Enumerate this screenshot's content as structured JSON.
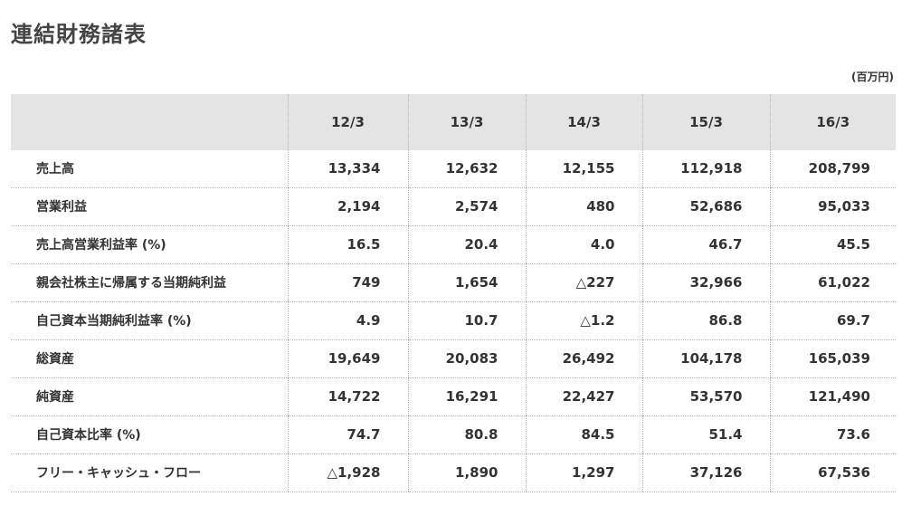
{
  "page": {
    "title": "連結財務諸表",
    "unit": "(百万円)"
  },
  "table": {
    "columns": [
      "",
      "12/3",
      "13/3",
      "14/3",
      "15/3",
      "16/3"
    ],
    "rows": [
      {
        "label": "売上高",
        "values": [
          "13,334",
          "12,632",
          "12,155",
          "112,918",
          "208,799"
        ]
      },
      {
        "label": "営業利益",
        "values": [
          "2,194",
          "2,574",
          "480",
          "52,686",
          "95,033"
        ]
      },
      {
        "label": "売上高営業利益率 (%)",
        "values": [
          "16.5",
          "20.4",
          "4.0",
          "46.7",
          "45.5"
        ]
      },
      {
        "label": "親会社株主に帰属する当期純利益",
        "values": [
          "749",
          "1,654",
          "△227",
          "32,966",
          "61,022"
        ]
      },
      {
        "label": "自己資本当期純利益率 (%)",
        "values": [
          "4.9",
          "10.7",
          "△1.2",
          "86.8",
          "69.7"
        ]
      },
      {
        "label": "総資産",
        "values": [
          "19,649",
          "20,083",
          "26,492",
          "104,178",
          "165,039"
        ]
      },
      {
        "label": "純資産",
        "values": [
          "14,722",
          "16,291",
          "22,427",
          "53,570",
          "121,490"
        ]
      },
      {
        "label": "自己資本比率 (%)",
        "values": [
          "74.7",
          "80.8",
          "84.5",
          "51.4",
          "73.6"
        ]
      },
      {
        "label": "フリー・キャッシュ・フロー",
        "values": [
          "△1,928",
          "1,890",
          "1,297",
          "37,126",
          "67,536"
        ]
      }
    ]
  }
}
